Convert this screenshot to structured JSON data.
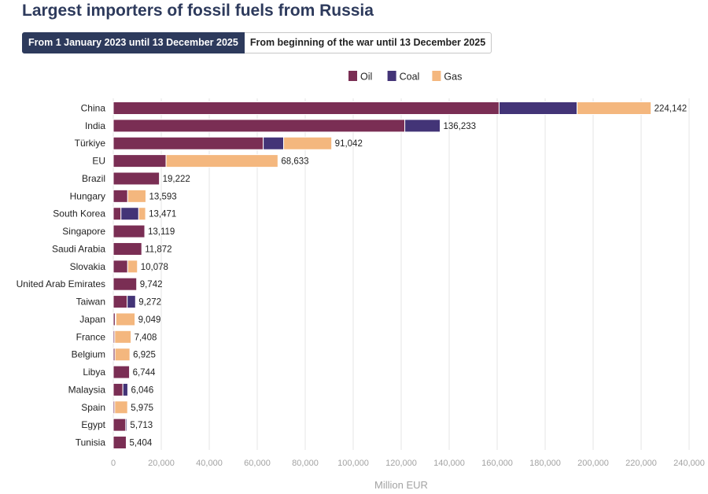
{
  "title": "Largest importers of fossil fuels from Russia",
  "tabs": [
    {
      "label": "From 1 January 2023 until 13 December 2025",
      "active": true
    },
    {
      "label": "From beginning of the war until 13 December 2025",
      "active": false
    }
  ],
  "colors": {
    "oil": "#7a2e54",
    "coal": "#433477",
    "gas": "#f4b77e",
    "grid": "#e6e6e6",
    "header": "#2d3a5c"
  },
  "chart_data": {
    "type": "bar",
    "orientation": "horizontal",
    "stacked": true,
    "xlabel": "Million EUR",
    "xlim": [
      0,
      240000
    ],
    "xticks": [
      0,
      20000,
      40000,
      60000,
      80000,
      100000,
      120000,
      140000,
      160000,
      180000,
      200000,
      220000,
      240000
    ],
    "xtick_labels": [
      "0",
      "20,000",
      "40,000",
      "60,000",
      "80,000",
      "100,000",
      "120,000",
      "140,000",
      "160,000",
      "180,000",
      "200,000",
      "220,000",
      "240,000"
    ],
    "legend": {
      "placement": "top-center",
      "entries": [
        "Oil",
        "Coal",
        "Gas"
      ]
    },
    "grid": "vertical",
    "categories": [
      "China",
      "India",
      "Türkiye",
      "EU",
      "Brazil",
      "Hungary",
      "South Korea",
      "Singapore",
      "Saudi Arabia",
      "Slovakia",
      "United Arab Emirates",
      "Taiwan",
      "Japan",
      "France",
      "Belgium",
      "Libya",
      "Malaysia",
      "Spain",
      "Egypt",
      "Tunisia"
    ],
    "series": [
      {
        "name": "Oil",
        "values": [
          160800,
          121500,
          62500,
          22000,
          19222,
          6000,
          3200,
          13119,
          11872,
          6000,
          9742,
          5800,
          800,
          600,
          700,
          6744,
          4000,
          600,
          5200,
          5404
        ]
      },
      {
        "name": "Coal",
        "values": [
          32500,
          14733,
          8500,
          0,
          0,
          0,
          7400,
          0,
          0,
          0,
          0,
          3472,
          300,
          0,
          0,
          0,
          2046,
          0,
          513,
          0
        ]
      },
      {
        "name": "Gas",
        "values": [
          30842,
          0,
          20042,
          46633,
          0,
          7593,
          2871,
          0,
          0,
          4078,
          0,
          0,
          7949,
          6808,
          6225,
          0,
          0,
          5375,
          0,
          0
        ]
      }
    ],
    "totals": [
      224142,
      136233,
      91042,
      68633,
      19222,
      13593,
      13471,
      13119,
      11872,
      10078,
      9742,
      9272,
      9049,
      7408,
      6925,
      6744,
      6046,
      5975,
      5713,
      5404
    ],
    "total_labels": [
      "224,142",
      "136,233",
      "91,042",
      "68,633",
      "19,222",
      "13,593",
      "13,471",
      "13,119",
      "11,872",
      "10,078",
      "9,742",
      "9,272",
      "9,049",
      "7,408",
      "6,925",
      "6,744",
      "6,046",
      "5,975",
      "5,713",
      "5,404"
    ]
  }
}
